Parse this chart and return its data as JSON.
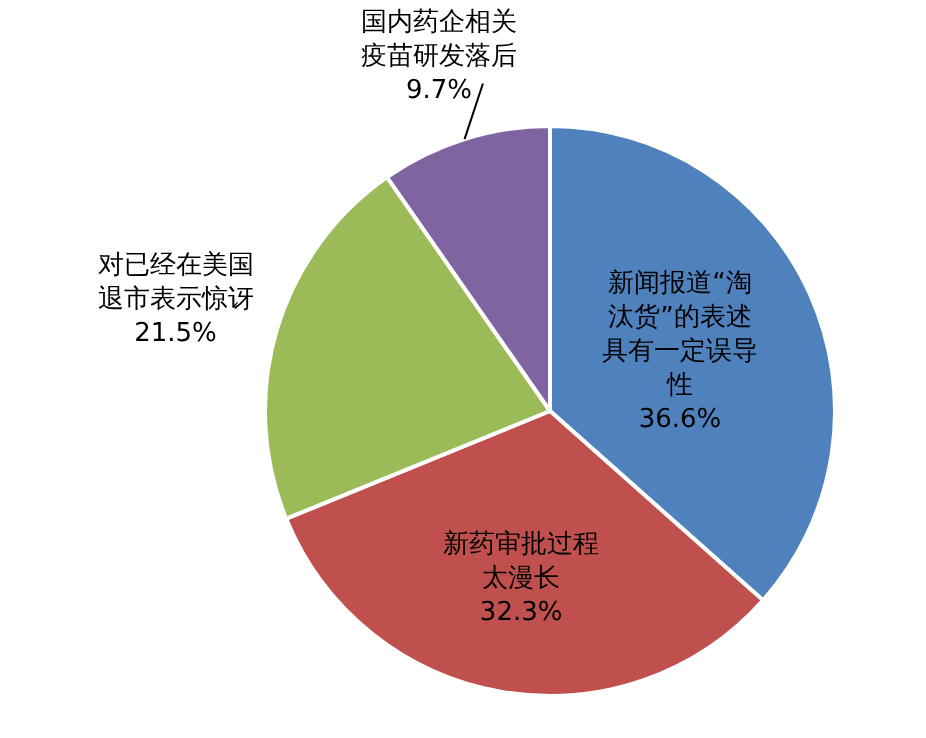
{
  "chart_data": {
    "type": "pie",
    "categories": [
      "新闻报道“淘汰货”的表述具有一定误导性",
      "新药审批过程太漫长",
      "对已经在美国退市表示惊讶",
      "国内药企相关疫苗研发落后"
    ],
    "values": [
      36.6,
      32.3,
      21.5,
      9.7
    ],
    "value_labels": [
      "36.6%",
      "32.3%",
      "21.5%",
      "9.7%"
    ],
    "colors": [
      "#4f81bd",
      "#c0504d",
      "#9bbb59",
      "#8064a2"
    ],
    "legend": false
  }
}
